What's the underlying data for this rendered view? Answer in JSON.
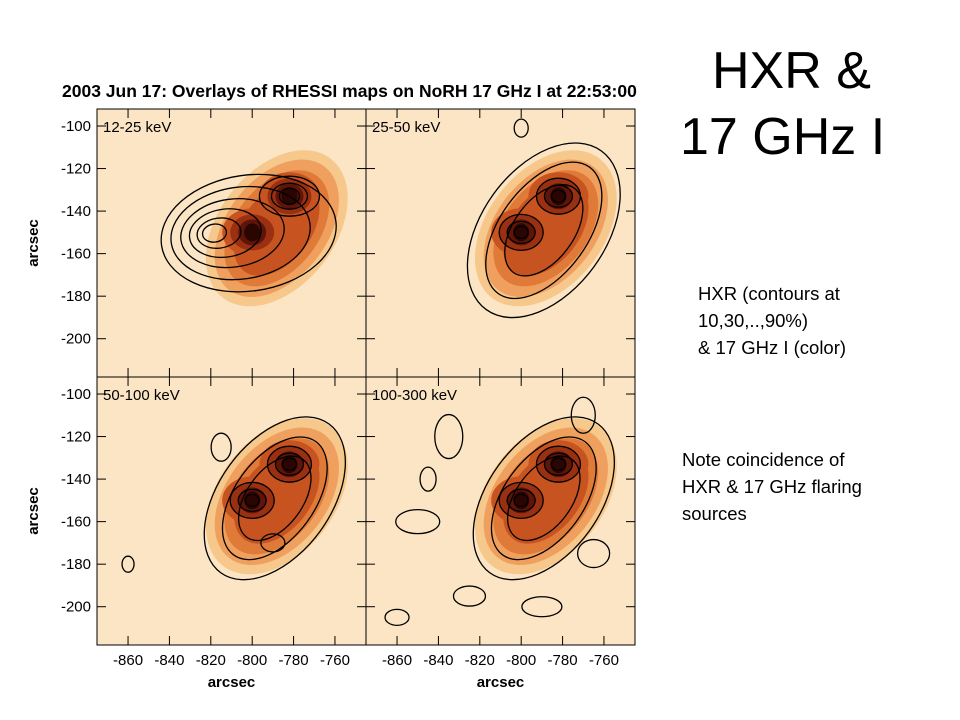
{
  "slide": {
    "title_line1": "HXR &",
    "title_line2": "17 GHz I",
    "note1": [
      "HXR (contours at",
      "10,30,..,90%)",
      "& 17 GHz I (color)"
    ],
    "note2": [
      "Note coincidence of",
      "HXR & 17 GHz flaring",
      "sources"
    ]
  },
  "chart_data": {
    "type": "heatmap",
    "title": "2003 Jun 17: Overlays of RHESSI maps on NoRH 17 GHz I at 22:53:00",
    "xlabel": "arcsec",
    "ylabel": "arcsec",
    "xlim": [
      -875,
      -745
    ],
    "ylim": [
      -218,
      -92
    ],
    "x_ticks": [
      -860,
      -840,
      -820,
      -800,
      -780,
      -760
    ],
    "y_ticks": [
      -100,
      -120,
      -140,
      -160,
      -180,
      -200
    ],
    "color_map": [
      "#fbe5c4",
      "#f6c88c",
      "#efa05e",
      "#e07a38",
      "#c75420",
      "#9a3012",
      "#5e1508",
      "#2a0502"
    ],
    "color_sources": [
      {
        "name": "",
        "x": -800,
        "y": -150
      },
      {
        "name": "",
        "x": -782,
        "y": -133
      }
    ],
    "contour_levels_percent": [
      10,
      30,
      50,
      70,
      90
    ],
    "panels": [
      {
        "label": "12-25 keV",
        "hxr_peak": [
          -816,
          -148
        ]
      },
      {
        "label": "25-50 keV",
        "hxr_peak": [
          -782,
          -133
        ]
      },
      {
        "label": "50-100 keV",
        "hxr_peak": [
          -782,
          -133
        ]
      },
      {
        "label": "100-300 keV",
        "hxr_peak": [
          -782,
          -133
        ]
      }
    ]
  }
}
